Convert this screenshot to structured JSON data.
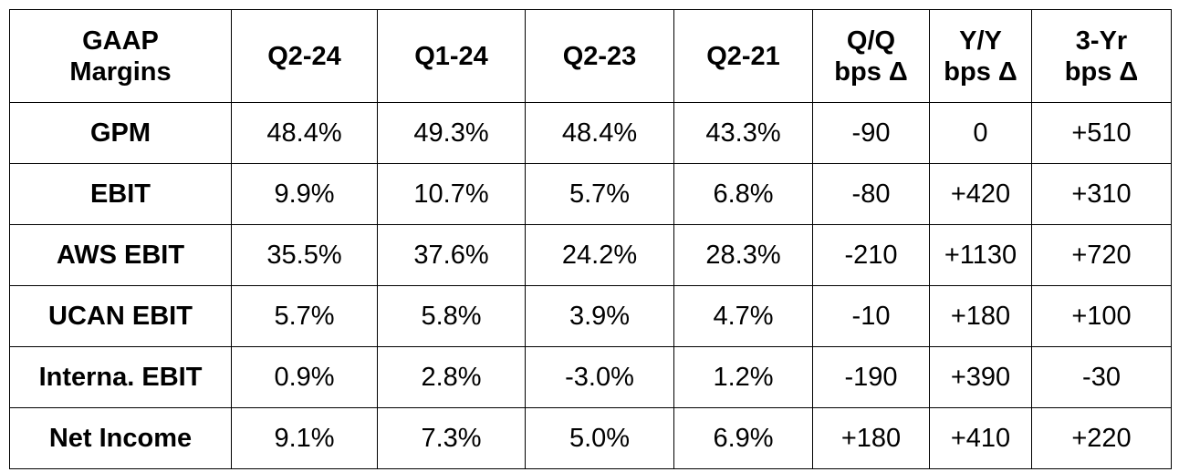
{
  "table": {
    "header": [
      [
        "GAAP",
        "Margins"
      ],
      [
        "Q2-24"
      ],
      [
        "Q1-24"
      ],
      [
        "Q2-23"
      ],
      [
        "Q2-21"
      ],
      [
        "Q/Q",
        "bps Δ"
      ],
      [
        "Y/Y",
        "bps Δ"
      ],
      [
        "3-Yr",
        "bps Δ"
      ]
    ],
    "rows": [
      [
        "GPM",
        "48.4%",
        "49.3%",
        "48.4%",
        "43.3%",
        "-90",
        "0",
        "+510"
      ],
      [
        "EBIT",
        "9.9%",
        "10.7%",
        "5.7%",
        "6.8%",
        "-80",
        "+420",
        "+310"
      ],
      [
        "AWS EBIT",
        "35.5%",
        "37.6%",
        "24.2%",
        "28.3%",
        "-210",
        "+1130",
        "+720"
      ],
      [
        "UCAN EBIT",
        "5.7%",
        "5.8%",
        "3.9%",
        "4.7%",
        "-10",
        "+180",
        "+100"
      ],
      [
        "Interna. EBIT",
        "0.9%",
        "2.8%",
        "-3.0%",
        "1.2%",
        "-190",
        "+390",
        "-30"
      ],
      [
        "Net Income",
        "9.1%",
        "7.3%",
        "5.0%",
        "6.9%",
        "+180",
        "+410",
        "+220"
      ]
    ]
  }
}
